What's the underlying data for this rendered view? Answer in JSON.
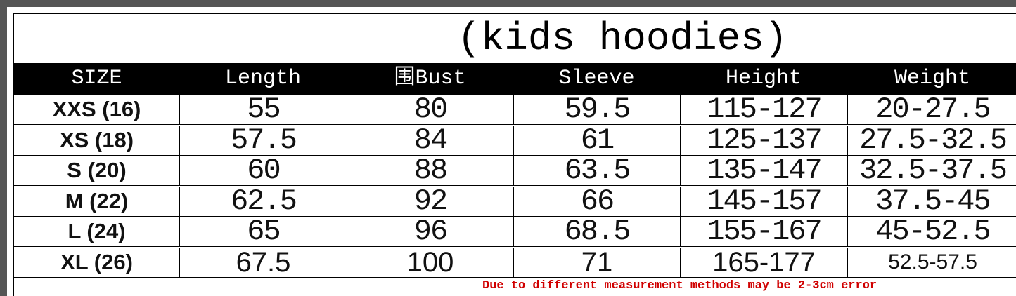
{
  "title": "(kids hoodies)",
  "headers": [
    "SIZE",
    "Length",
    "围Bust",
    "Sleeve",
    "Height",
    "Weight"
  ],
  "rows": [
    [
      "XXS (16)",
      "55",
      "80",
      "59.5",
      "115-127",
      "20-27.5"
    ],
    [
      "XS (18)",
      "57.5",
      "84",
      "61",
      "125-137",
      "27.5-32.5"
    ],
    [
      "S (20)",
      "60",
      "88",
      "63.5",
      "135-147",
      "32.5-37.5"
    ],
    [
      "M (22)",
      "62.5",
      "92",
      "66",
      "145-157",
      "37.5-45"
    ],
    [
      "L (24)",
      "65",
      "96",
      "68.5",
      "155-167",
      "45-52.5"
    ],
    [
      "XL (26)",
      "67.5",
      "100",
      "71",
      "165-177",
      "52.5-57.5"
    ]
  ],
  "note": "Due to different measurement methods may be 2-3cm error",
  "colors": {
    "header_bg": "#000000",
    "note": "#d00000",
    "frame": "#555555"
  }
}
